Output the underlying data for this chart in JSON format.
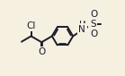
{
  "background_color": "#f5f0e0",
  "line_color": "#1c1c2e",
  "line_width": 1.4,
  "fontsize": 7.5,
  "figsize": [
    1.39,
    0.85
  ],
  "dpi": 100,
  "xlim": [
    0,
    13
  ],
  "ylim": [
    0,
    8
  ]
}
